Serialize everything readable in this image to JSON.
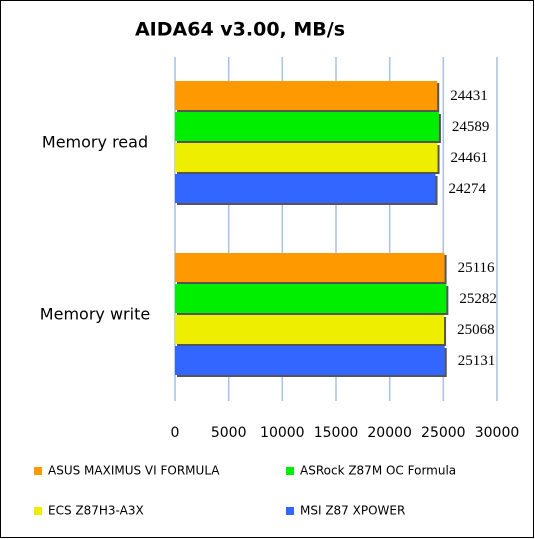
{
  "chart_data": {
    "type": "bar",
    "orientation": "horizontal",
    "title": "AIDA64 v3.00, MB/s",
    "categories": [
      "Memory read",
      "Memory write"
    ],
    "series": [
      {
        "name": "ASUS MAXIMUS VI FORMULA",
        "color": "#ff9900",
        "values": [
          24431,
          25116
        ]
      },
      {
        "name": "ASRock Z87M OC Formula",
        "color": "#00ee00",
        "values": [
          24589,
          25282
        ]
      },
      {
        "name": "ECS Z87H3-A3X",
        "color": "#eeee00",
        "values": [
          24461,
          25068
        ]
      },
      {
        "name": "MSI Z87 XPOWER",
        "color": "#3366ff",
        "values": [
          24274,
          25131
        ]
      }
    ],
    "xlim": [
      0,
      30000
    ],
    "xticks": [
      0,
      5000,
      10000,
      15000,
      20000,
      25000,
      30000
    ],
    "grid": true,
    "legend": "bottom"
  }
}
